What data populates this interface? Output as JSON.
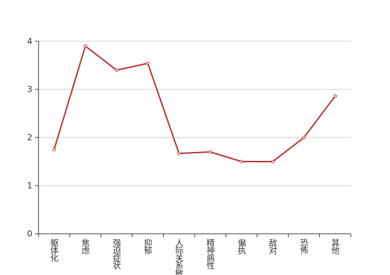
{
  "chart_data": {
    "type": "line",
    "categories": [
      "躯体化",
      "焦虑",
      "强迫症状",
      "抑郁",
      "人际关系敏感",
      "精神病性",
      "偏执",
      "敌对",
      "恐怖",
      "其他"
    ],
    "values": [
      1.75,
      3.9,
      3.4,
      3.54,
      1.67,
      1.7,
      1.5,
      1.5,
      2.0,
      2.86
    ],
    "color": "#b8312f",
    "ylim": [
      0,
      4
    ],
    "yticks": [
      0,
      1,
      2,
      3,
      4
    ],
    "grid": true
  }
}
